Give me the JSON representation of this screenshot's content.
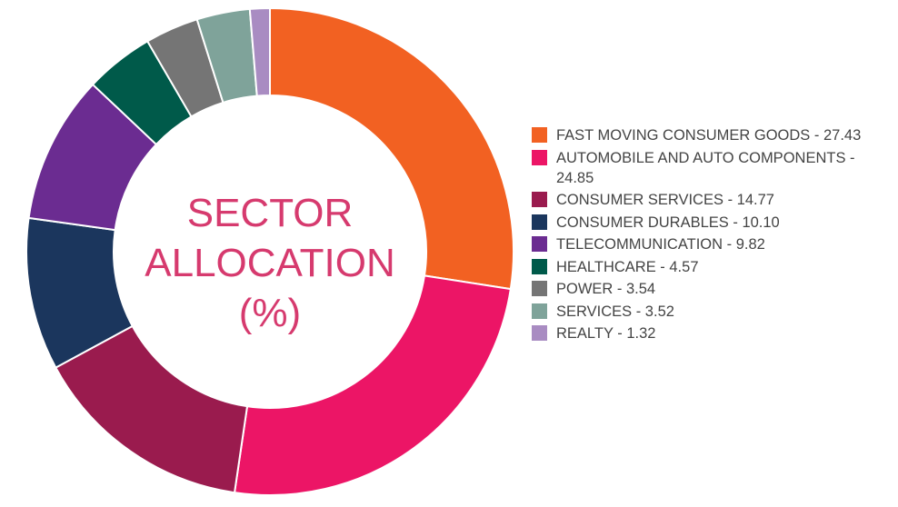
{
  "chart_data": {
    "type": "pie",
    "variant": "donut",
    "title": "SECTOR ALLOCATION (%)",
    "title_lines": [
      "SECTOR",
      "ALLOCATION",
      "(%)"
    ],
    "legend_position": "right",
    "slices": [
      {
        "label": "FAST MOVING CONSUMER GOODS",
        "value": 27.43,
        "color": "#F26122"
      },
      {
        "label": "AUTOMOBILE AND AUTO COMPONENTS",
        "value": 24.85,
        "color": "#EC1566"
      },
      {
        "label": "CONSUMER SERVICES",
        "value": 14.77,
        "color": "#9A1B4E"
      },
      {
        "label": "CONSUMER DURABLES",
        "value": 10.1,
        "color": "#1B365D"
      },
      {
        "label": "TELECOMMUNICATION",
        "value": 9.82,
        "color": "#6B2C91"
      },
      {
        "label": "HEALTHCARE",
        "value": 4.57,
        "color": "#005A4A"
      },
      {
        "label": "POWER",
        "value": 3.54,
        "color": "#757575"
      },
      {
        "label": "SERVICES",
        "value": 3.52,
        "color": "#7FA39A"
      },
      {
        "label": "REALTY",
        "value": 1.32,
        "color": "#A98CC2"
      }
    ]
  }
}
